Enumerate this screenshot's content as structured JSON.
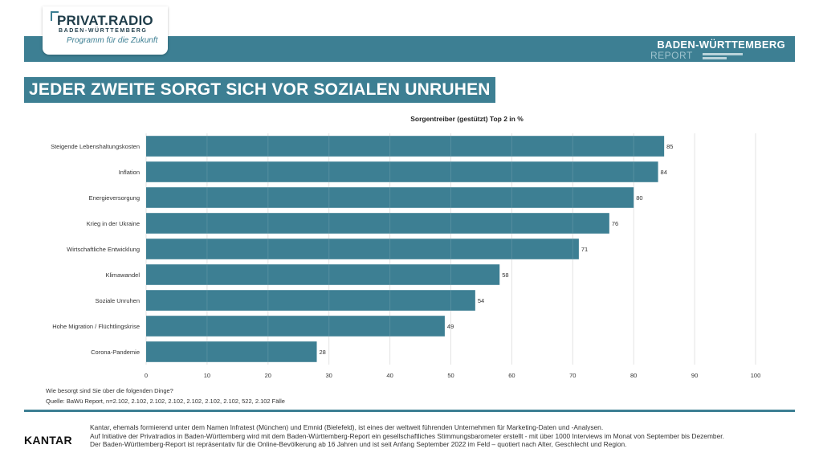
{
  "header": {
    "logo_main": "PRIVAT.RADIO",
    "logo_sub": "BADEN-WÜRTTEMBERG",
    "logo_tagline": "Programm für die Zukunft",
    "report_title": "BADEN-WÜRTTEMBERG",
    "report_sub": "REPORT"
  },
  "headline": "JEDER ZWEITE SORGT SICH VOR SOZIALEN UNRUHEN",
  "chart_data": {
    "type": "bar",
    "orientation": "horizontal",
    "title": "Sorgentreiber (gestützt) Top 2 in %",
    "categories": [
      "Steigende Lebenshaltungskosten",
      "Inflation",
      "Energieversorgung",
      "Krieg in der Ukraine",
      "Wirtschaftliche Entwicklung",
      "Klimawandel",
      "Soziale Unruhen",
      "Hohe Migration / Flüchtlingskrise",
      "Corona-Pandemie"
    ],
    "values": [
      85,
      84,
      80,
      76,
      71,
      58,
      54,
      49,
      28
    ],
    "xlim": [
      0,
      100
    ],
    "xticks": [
      0,
      10,
      20,
      30,
      40,
      50,
      60,
      70,
      80,
      90,
      100
    ],
    "grid": true,
    "bar_color": "#3d7f93"
  },
  "notes": {
    "question": "Wie besorgt sind Sie über die folgenden Dinge?",
    "source": "Quelle: BaWü Report, n=2.102, 2.102, 2.102, 2.102, 2.102, 2.102, 2.102, 522, 2.102 Fälle"
  },
  "footer": {
    "brand": "KANTAR",
    "line1": "Kantar, ehemals formierend unter dem Namen Infratest (München) und Emnid (Bielefeld), ist eines der weltweit führenden Unternehmen für Marketing-Daten und -Analysen.",
    "line2": "Auf Initiative der Privatradios in Baden-Württemberg wird mit dem Baden-Württemberg-Report ein gesellschaftliches Stimmungsbarometer erstellt - mit über 1000 Interviews im Monat von September bis Dezember.",
    "line3": "Der Baden-Württemberg-Report ist repräsentativ für die Online-Bevölkerung ab 16 Jahren und ist seit Anfang September 2022 im Feld – quotiert nach Alter, Geschlecht und Region."
  }
}
